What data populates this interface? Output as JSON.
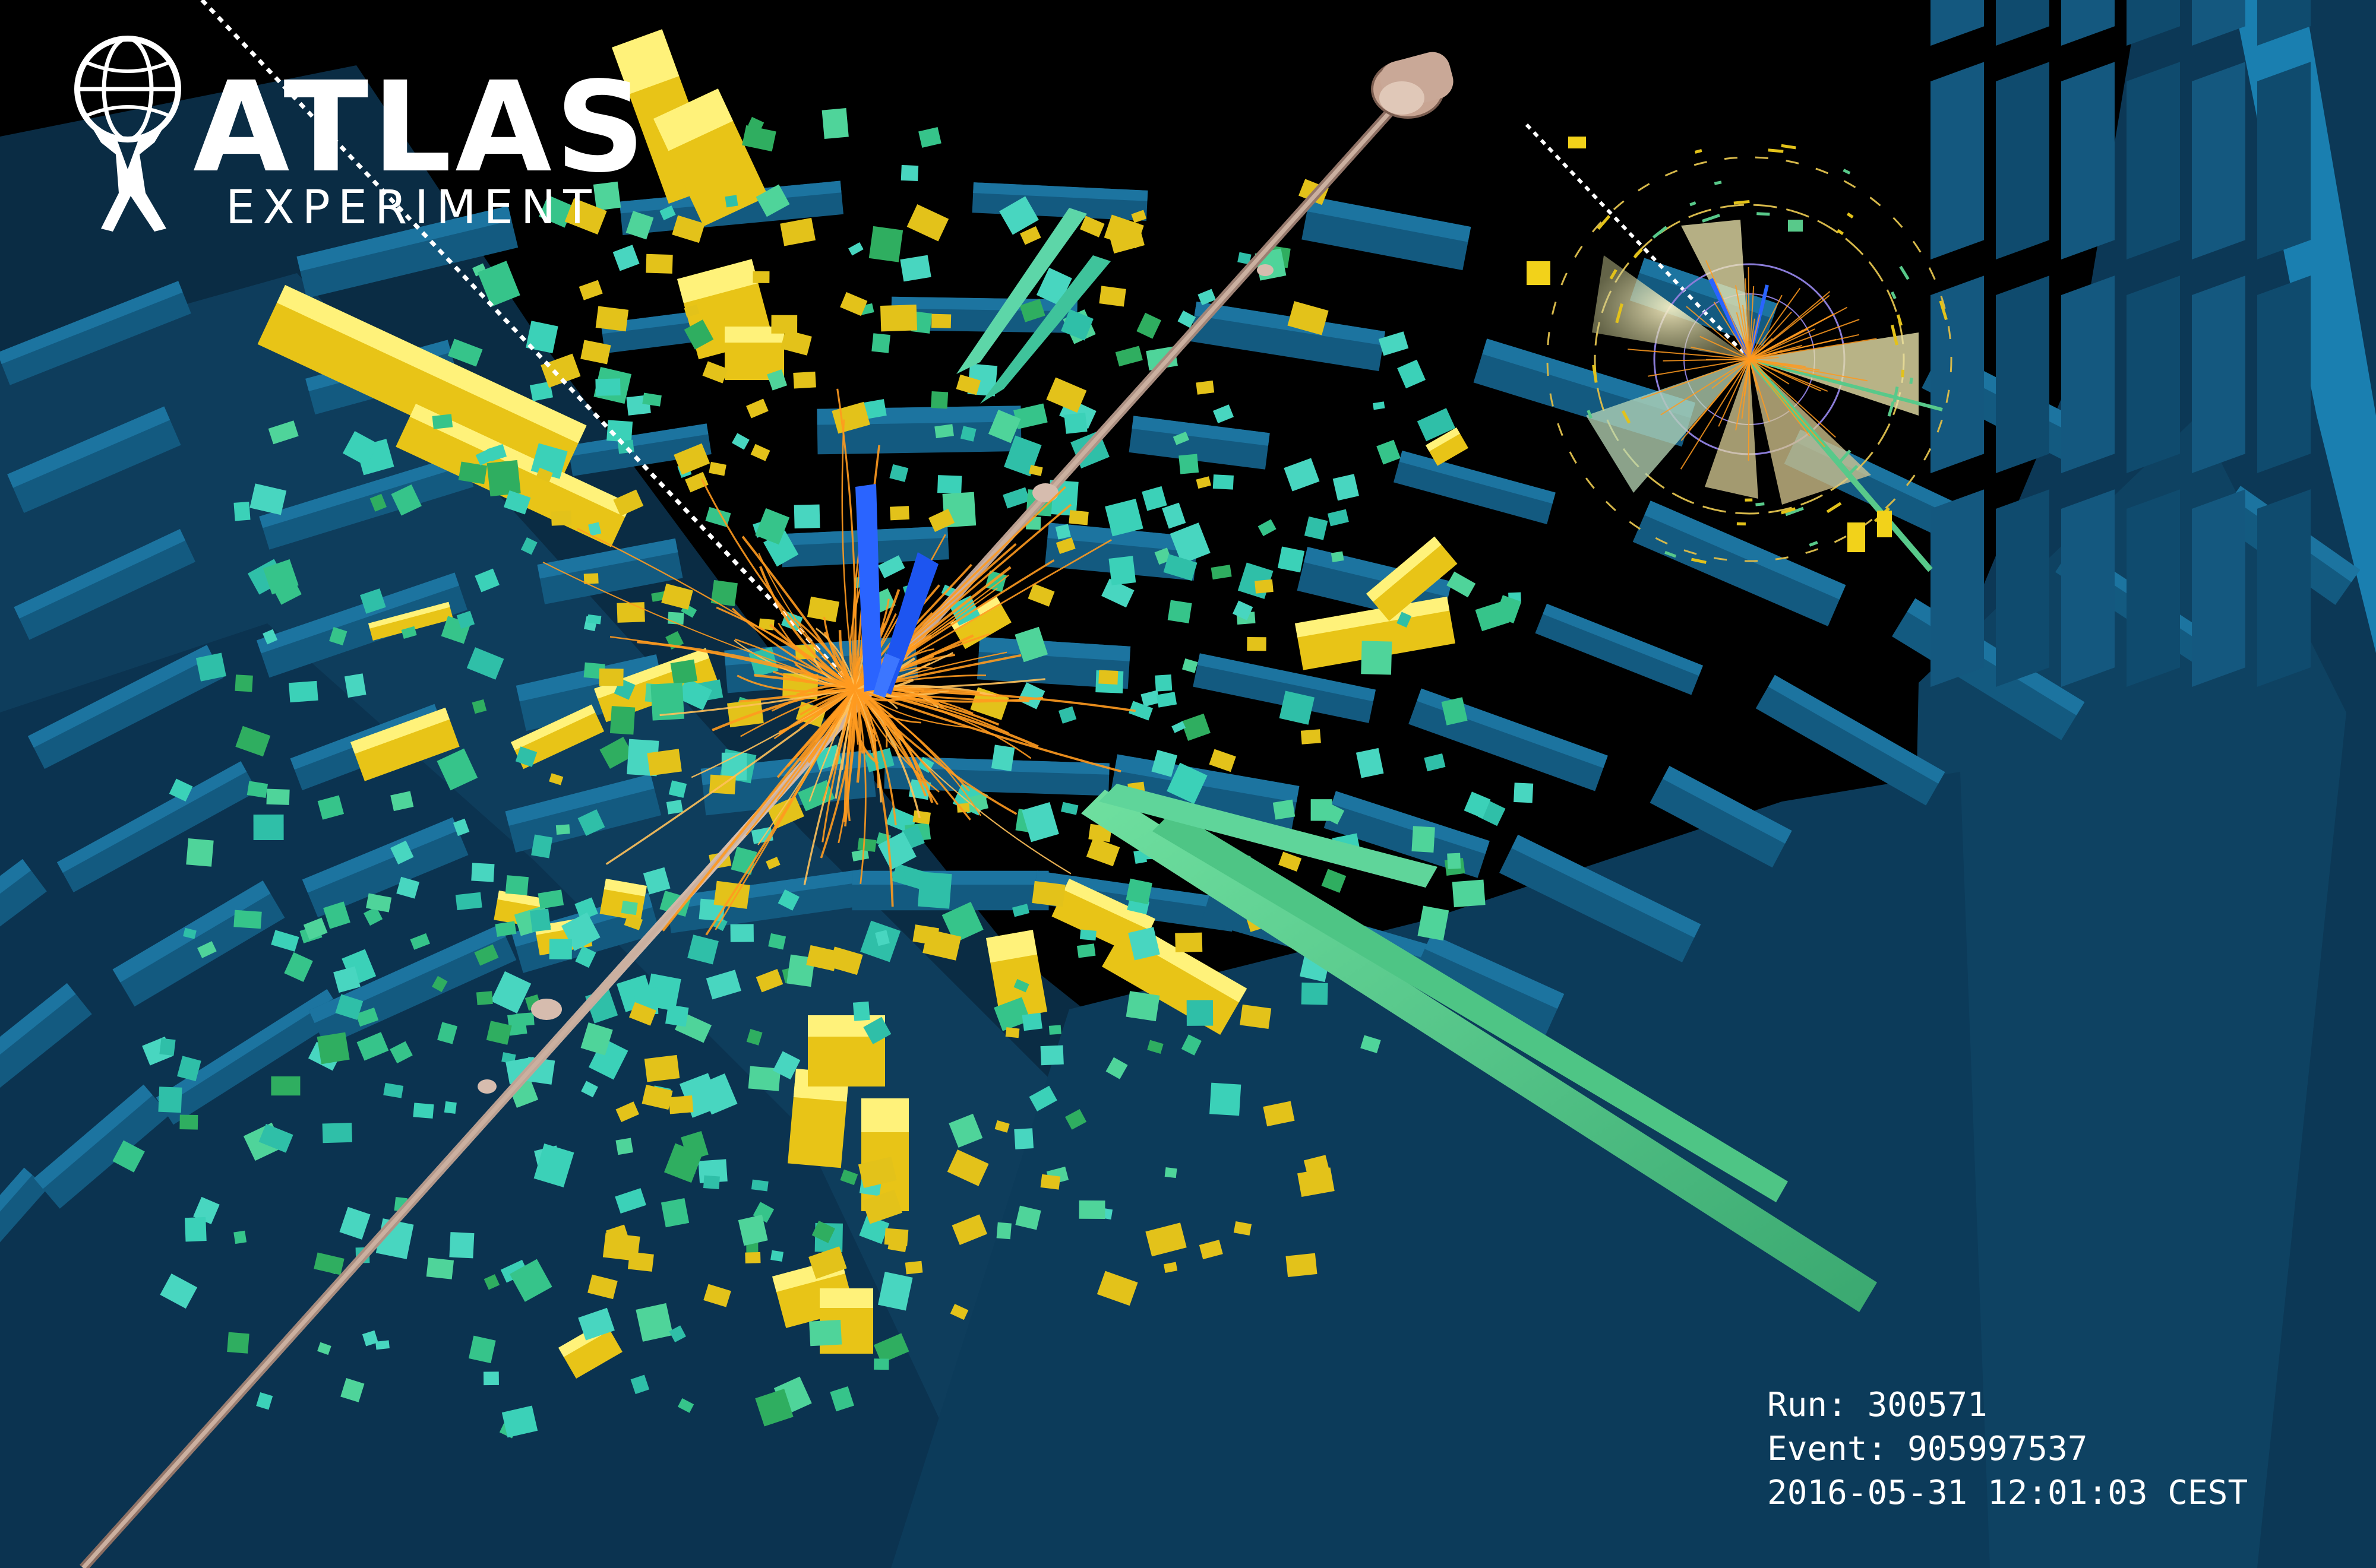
{
  "logo": {
    "title": "ATLAS",
    "subtitle": "EXPERIMENT"
  },
  "event": {
    "run_label": "Run:",
    "run_value": "300571",
    "event_label": "Event:",
    "event_value": "905997537",
    "datetime": "2016-05-31 12:01:03 CEST"
  },
  "colors": {
    "background": "#000000",
    "muon_chambers": "#0d4a6e",
    "calorimeter_deposits": "#f2d21a",
    "calorimeter_cells": "#3bd1b8",
    "tracks": "#ff9a1f",
    "jets": "#5ccf8a",
    "muon_tracks": "#1e5bff",
    "beam_pipe": "#b8998a"
  }
}
